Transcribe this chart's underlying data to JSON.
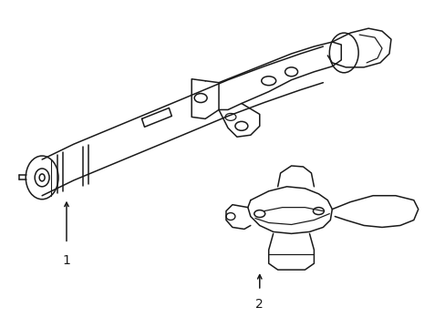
{
  "background_color": "#ffffff",
  "line_color": "#1a1a1a",
  "lw": 1.1,
  "label1": "1",
  "label2": "2",
  "fig_width": 4.89,
  "fig_height": 3.6,
  "dpi": 100
}
